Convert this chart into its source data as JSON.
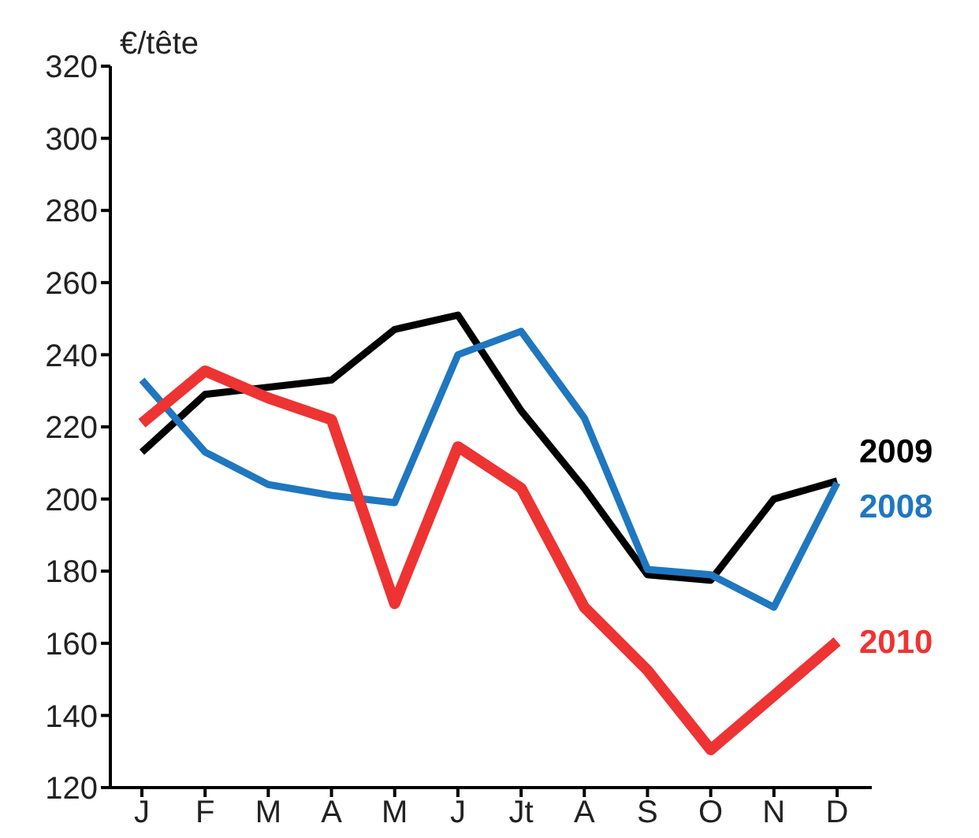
{
  "chart_data": {
    "type": "line",
    "ylabel": "€/tête",
    "categories": [
      "J",
      "F",
      "M",
      "A",
      "M",
      "J",
      "Jt",
      "A",
      "S",
      "O",
      "N",
      "D"
    ],
    "series": [
      {
        "name": "2009",
        "color": "#000000",
        "values": [
          213,
          229,
          231,
          233,
          247,
          251,
          224.5,
          203,
          179,
          177.5,
          200,
          205
        ]
      },
      {
        "name": "2008",
        "color": "#1f77c0",
        "values": [
          233,
          213,
          204,
          201,
          199,
          240,
          246.5,
          222.5,
          180.5,
          179,
          170,
          204.5
        ]
      },
      {
        "name": "2010",
        "color": "#ee3333",
        "values": [
          221,
          235.5,
          228,
          222,
          171,
          214.5,
          203,
          170,
          152.5,
          130.5,
          145.5,
          160.5
        ]
      }
    ],
    "ylim": [
      120,
      320
    ],
    "yticks": [
      120,
      140,
      160,
      180,
      200,
      220,
      240,
      260,
      280,
      300,
      320
    ],
    "grid": false,
    "legend": false,
    "marker": "none",
    "line_style": "solid"
  }
}
